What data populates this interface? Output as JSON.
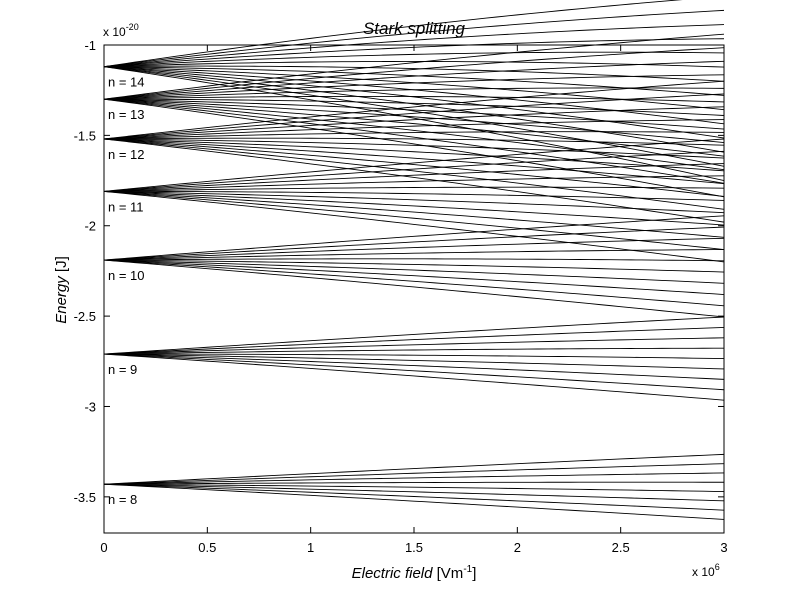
{
  "chart_data": {
    "type": "line",
    "title": "Stark splitting",
    "xlabel": {
      "main": "Electric field",
      "unit_prefix": " [Vm",
      "unit_sup": "-1",
      "unit_suffix": "]"
    },
    "ylabel": {
      "main": "Energy",
      "unit": " [J]"
    },
    "xlim": [
      0,
      3
    ],
    "ylim": [
      -3.7,
      -1
    ],
    "x_multiplier": {
      "base": "x 10",
      "exp": "6"
    },
    "y_multiplier": {
      "base": "x 10",
      "exp": "-20"
    },
    "xticks": [
      0,
      0.5,
      1,
      1.5,
      2,
      2.5,
      3
    ],
    "xtick_labels": [
      "0",
      "0.5",
      "1",
      "1.5",
      "2",
      "2.5",
      "3"
    ],
    "yticks": [
      -1,
      -1.5,
      -2,
      -2.5,
      -3,
      -3.5
    ],
    "ytick_labels": [
      "-1",
      "-1.5",
      "-2",
      "-2.5",
      "-3",
      "-3.5"
    ],
    "grid": false,
    "legend": null,
    "levels": [
      {
        "label": "n = 8",
        "n": 8,
        "energy_at_zero": -3.43,
        "max_shift": 0.18,
        "curvature": 0.015
      },
      {
        "label": "n = 9",
        "n": 9,
        "energy_at_zero": -2.71,
        "max_shift": 0.23,
        "curvature": 0.025
      },
      {
        "label": "n = 10",
        "n": 10,
        "energy_at_zero": -2.19,
        "max_shift": 0.28,
        "curvature": 0.035
      },
      {
        "label": "n = 11",
        "n": 11,
        "energy_at_zero": -1.81,
        "max_shift": 0.34,
        "curvature": 0.05
      },
      {
        "label": "n = 12",
        "n": 12,
        "energy_at_zero": -1.52,
        "max_shift": 0.39,
        "curvature": 0.07
      },
      {
        "label": "n = 13",
        "n": 13,
        "energy_at_zero": -1.3,
        "max_shift": 0.45,
        "curvature": 0.09
      },
      {
        "label": "n = 14",
        "n": 14,
        "energy_at_zero": -1.12,
        "max_shift": 0.51,
        "curvature": 0.12
      }
    ]
  }
}
